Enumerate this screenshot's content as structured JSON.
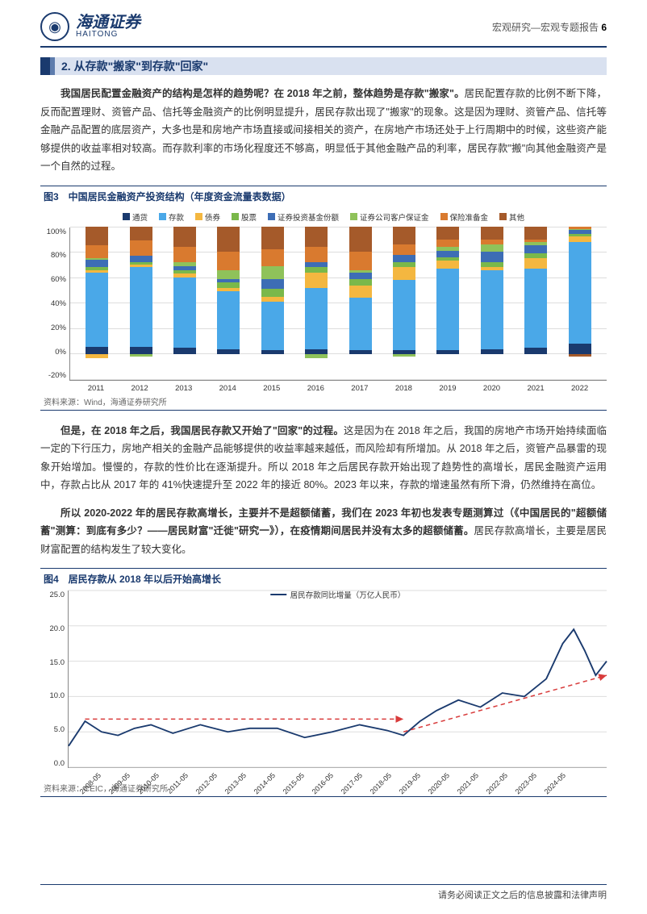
{
  "header": {
    "logo_cn": "海通证券",
    "logo_en": "HAITONG",
    "breadcrumb": "宏观研究—宏观专题报告",
    "page_num": "6"
  },
  "section": {
    "num": "2.",
    "title": "从存款\"搬家\"到存款\"回家\""
  },
  "para1_lead": "我国居民配置金融资产的结构是怎样的趋势呢？在 2018 年之前，整体趋势是存款\"搬家\"。",
  "para1_rest": "居民配置存款的比例不断下降，反而配置理财、资管产品、信托等金融资产的比例明显提升，居民存款出现了\"搬家\"的现象。这是因为理财、资管产品、信托等金融产品配置的底层资产，大多也是和房地产市场直接或间接相关的资产，在房地产市场还处于上行周期中的时候，这些资产能够提供的收益率相对较高。而存款利率的市场化程度还不够高，明显低于其他金融产品的利率，居民存款\"搬\"向其他金融资产是一个自然的过程。",
  "chart3": {
    "title": "图3　中国居民金融资产投资结构（年度资金流量表数据）",
    "source": "资料来源：Wind，海通证券研究所",
    "type": "stacked-bar",
    "legend": [
      "通货",
      "存款",
      "债券",
      "股票",
      "证券投资基金份额",
      "证券公司客户保证金",
      "保险准备金",
      "其他"
    ],
    "colors": [
      "#1a3a6e",
      "#4aa8e8",
      "#f4b740",
      "#7ab84a",
      "#3d6db5",
      "#8fc25a",
      "#d97a2f",
      "#a55a2a"
    ],
    "y_ticks": [
      "100%",
      "80%",
      "60%",
      "40%",
      "20%",
      "0%",
      "-20%"
    ],
    "y_min": -20,
    "y_max": 100,
    "years": [
      "2011",
      "2012",
      "2013",
      "2014",
      "2015",
      "2016",
      "2017",
      "2018",
      "2019",
      "2020",
      "2021",
      "2022"
    ],
    "data": [
      {
        "neg": [
          {
            "c": 2,
            "v": 3
          }
        ],
        "pos": [
          {
            "c": 0,
            "v": 6
          },
          {
            "c": 1,
            "v": 58
          },
          {
            "c": 2,
            "v": 2
          },
          {
            "c": 3,
            "v": 2
          },
          {
            "c": 4,
            "v": 6
          },
          {
            "c": 5,
            "v": 1
          },
          {
            "c": 6,
            "v": 10
          },
          {
            "c": 7,
            "v": 15
          }
        ]
      },
      {
        "neg": [
          {
            "c": 5,
            "v": 2
          }
        ],
        "pos": [
          {
            "c": 0,
            "v": 6
          },
          {
            "c": 1,
            "v": 62
          },
          {
            "c": 2,
            "v": 2
          },
          {
            "c": 3,
            "v": 2
          },
          {
            "c": 4,
            "v": 5
          },
          {
            "c": 5,
            "v": 0
          },
          {
            "c": 6,
            "v": 12
          },
          {
            "c": 7,
            "v": 11
          }
        ]
      },
      {
        "neg": [],
        "pos": [
          {
            "c": 0,
            "v": 5
          },
          {
            "c": 1,
            "v": 55
          },
          {
            "c": 2,
            "v": 3
          },
          {
            "c": 3,
            "v": 3
          },
          {
            "c": 4,
            "v": 3
          },
          {
            "c": 5,
            "v": 3
          },
          {
            "c": 6,
            "v": 12
          },
          {
            "c": 7,
            "v": 16
          }
        ]
      },
      {
        "neg": [],
        "pos": [
          {
            "c": 0,
            "v": 4
          },
          {
            "c": 1,
            "v": 45
          },
          {
            "c": 2,
            "v": 3
          },
          {
            "c": 3,
            "v": 4
          },
          {
            "c": 4,
            "v": 3
          },
          {
            "c": 5,
            "v": 7
          },
          {
            "c": 6,
            "v": 14
          },
          {
            "c": 7,
            "v": 20
          }
        ]
      },
      {
        "neg": [],
        "pos": [
          {
            "c": 0,
            "v": 3
          },
          {
            "c": 1,
            "v": 38
          },
          {
            "c": 2,
            "v": 4
          },
          {
            "c": 3,
            "v": 6
          },
          {
            "c": 4,
            "v": 8
          },
          {
            "c": 5,
            "v": 10
          },
          {
            "c": 6,
            "v": 13
          },
          {
            "c": 7,
            "v": 18
          }
        ]
      },
      {
        "neg": [
          {
            "c": 5,
            "v": 3
          }
        ],
        "pos": [
          {
            "c": 0,
            "v": 4
          },
          {
            "c": 1,
            "v": 48
          },
          {
            "c": 2,
            "v": 12
          },
          {
            "c": 3,
            "v": 4
          },
          {
            "c": 4,
            "v": 4
          },
          {
            "c": 5,
            "v": 0
          },
          {
            "c": 6,
            "v": 12
          },
          {
            "c": 7,
            "v": 16
          }
        ]
      },
      {
        "neg": [],
        "pos": [
          {
            "c": 0,
            "v": 3
          },
          {
            "c": 1,
            "v": 41
          },
          {
            "c": 2,
            "v": 10
          },
          {
            "c": 3,
            "v": 5
          },
          {
            "c": 4,
            "v": 5
          },
          {
            "c": 5,
            "v": 2
          },
          {
            "c": 6,
            "v": 14
          },
          {
            "c": 7,
            "v": 20
          }
        ]
      },
      {
        "neg": [
          {
            "c": 5,
            "v": 2
          }
        ],
        "pos": [
          {
            "c": 0,
            "v": 3
          },
          {
            "c": 1,
            "v": 55
          },
          {
            "c": 2,
            "v": 10
          },
          {
            "c": 3,
            "v": 4
          },
          {
            "c": 4,
            "v": 6
          },
          {
            "c": 5,
            "v": 0
          },
          {
            "c": 6,
            "v": 8
          },
          {
            "c": 7,
            "v": 14
          }
        ]
      },
      {
        "neg": [],
        "pos": [
          {
            "c": 0,
            "v": 3
          },
          {
            "c": 1,
            "v": 64
          },
          {
            "c": 2,
            "v": 6
          },
          {
            "c": 3,
            "v": 3
          },
          {
            "c": 4,
            "v": 5
          },
          {
            "c": 5,
            "v": 3
          },
          {
            "c": 6,
            "v": 6
          },
          {
            "c": 7,
            "v": 10
          }
        ]
      },
      {
        "neg": [],
        "pos": [
          {
            "c": 0,
            "v": 4
          },
          {
            "c": 1,
            "v": 62
          },
          {
            "c": 2,
            "v": 2
          },
          {
            "c": 3,
            "v": 4
          },
          {
            "c": 4,
            "v": 8
          },
          {
            "c": 5,
            "v": 6
          },
          {
            "c": 6,
            "v": 4
          },
          {
            "c": 7,
            "v": 10
          }
        ]
      },
      {
        "neg": [],
        "pos": [
          {
            "c": 0,
            "v": 5
          },
          {
            "c": 1,
            "v": 62
          },
          {
            "c": 2,
            "v": 8
          },
          {
            "c": 3,
            "v": 4
          },
          {
            "c": 4,
            "v": 6
          },
          {
            "c": 5,
            "v": 3
          },
          {
            "c": 6,
            "v": 2
          },
          {
            "c": 7,
            "v": 10
          }
        ]
      },
      {
        "neg": [
          {
            "c": 7,
            "v": 2
          }
        ],
        "pos": [
          {
            "c": 0,
            "v": 8
          },
          {
            "c": 1,
            "v": 80
          },
          {
            "c": 2,
            "v": 4
          },
          {
            "c": 3,
            "v": 2
          },
          {
            "c": 4,
            "v": 3
          },
          {
            "c": 5,
            "v": 1
          },
          {
            "c": 6,
            "v": 2
          },
          {
            "c": 7,
            "v": 0
          }
        ]
      }
    ]
  },
  "para2_lead": "但是，在 2018 年之后，我国居民存款又开始了\"回家\"的过程。",
  "para2_rest": "这是因为在 2018 年之后，我国的房地产市场开始持续面临一定的下行压力，房地产相关的金融产品能够提供的收益率越来越低，而风险却有所增加。从 2018 年之后，资管产品暴雷的现象开始增加。慢慢的，存款的性价比在逐渐提升。所以 2018 年之后居民存款开始出现了趋势性的高增长，居民金融资产运用中，存款占比从 2017 年的 41%快速提升至 2022 年的接近 80%。2023 年以来，存款的增速虽然有所下滑，仍然维持在高位。",
  "para3_lead": "所以 2020-2022 年的居民存款高增长，主要并不是超额储蓄，我们在 2023 年初也发表专题测算过（《中国居民的\"超额储蓄\"测算：到底有多少？——居民财富\"迁徙\"研究一》），在疫情期间居民并没有太多的超额储蓄。",
  "para3_rest": "居民存款高增长，主要是居民财富配置的结构发生了较大变化。",
  "chart4": {
    "title": "图4　居民存款从 2018 年以后开始高增长",
    "source": "资料来源：CEIC，海通证券研究所",
    "legend_label": "居民存款同比增量（万亿人民币）",
    "type": "line",
    "line_color": "#1a3a6e",
    "arrow_color": "#d83b3b",
    "y_ticks": [
      "25.0",
      "20.0",
      "15.0",
      "10.0",
      "5.0",
      "0.0"
    ],
    "y_min": 0,
    "y_max": 25,
    "x_labels": [
      "2008-05",
      "2009-05",
      "2010-05",
      "2011-05",
      "2012-05",
      "2013-05",
      "2014-05",
      "2015-05",
      "2016-05",
      "2017-05",
      "2018-05",
      "2019-05",
      "2020-05",
      "2021-05",
      "2022-05",
      "2023-05",
      "2024-05"
    ],
    "points": [
      [
        0,
        3.0
      ],
      [
        6,
        6.5
      ],
      [
        12,
        5.0
      ],
      [
        18,
        4.5
      ],
      [
        24,
        5.5
      ],
      [
        30,
        6.0
      ],
      [
        38,
        4.8
      ],
      [
        48,
        6.0
      ],
      [
        58,
        5.0
      ],
      [
        66,
        5.5
      ],
      [
        76,
        5.5
      ],
      [
        86,
        4.2
      ],
      [
        96,
        5.0
      ],
      [
        106,
        6.0
      ],
      [
        116,
        5.2
      ],
      [
        122,
        4.5
      ],
      [
        128,
        6.5
      ],
      [
        134,
        8.0
      ],
      [
        142,
        9.5
      ],
      [
        150,
        8.5
      ],
      [
        158,
        10.5
      ],
      [
        166,
        10.0
      ],
      [
        174,
        12.5
      ],
      [
        180,
        17.5
      ],
      [
        184,
        19.5
      ],
      [
        188,
        16.5
      ],
      [
        192,
        13.0
      ],
      [
        196,
        15.0
      ]
    ],
    "arrows": [
      {
        "from": [
          6,
          6.8
        ],
        "to": [
          122,
          6.8
        ]
      },
      {
        "from": [
          122,
          5.0
        ],
        "to": [
          196,
          13.0
        ]
      }
    ],
    "x_domain_max": 196
  },
  "footer": "请务必阅读正文之后的信息披露和法律声明"
}
